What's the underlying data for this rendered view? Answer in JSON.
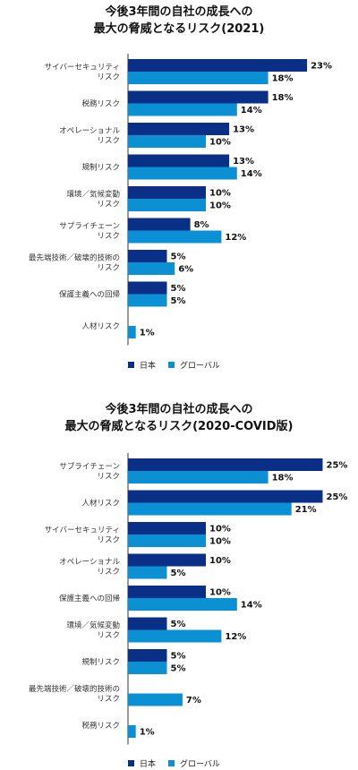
{
  "chart_data": [
    {
      "type": "bar",
      "orientation": "horizontal",
      "title_lines": [
        "今後3年間の自社の成長への",
        "最大の脅威となるリスク(2021)"
      ],
      "categories": [
        [
          "サイバーセキュリティ",
          "リスク"
        ],
        [
          "税務リスク"
        ],
        [
          "オペレーショナル",
          "リスク"
        ],
        [
          "規制リスク"
        ],
        [
          "環境／気候変動",
          "リスク"
        ],
        [
          "サプライチェーン",
          "リスク"
        ],
        [
          "最先端技術／破壊的技術の",
          "リスク"
        ],
        [
          "保護主義への回帰"
        ],
        [
          "人材リスク"
        ]
      ],
      "series": [
        {
          "name": "日本",
          "color": "#0a2f86",
          "values": [
            23,
            18,
            13,
            13,
            10,
            8,
            5,
            5,
            null
          ],
          "labels": [
            "23%",
            "18%",
            "13%",
            "13%",
            "10%",
            "8%",
            "5%",
            "5%",
            ""
          ]
        },
        {
          "name": "グローバル",
          "color": "#0b90d3",
          "values": [
            18,
            14,
            10,
            14,
            10,
            12,
            6,
            5,
            1
          ],
          "labels": [
            "18%",
            "14%",
            "10%",
            "14%",
            "10%",
            "12%",
            "6%",
            "5%",
            "1%"
          ]
        }
      ],
      "legend": "bottom-left",
      "grid": false
    },
    {
      "type": "bar",
      "orientation": "horizontal",
      "title_lines": [
        "今後3年間の自社の成長への",
        "最大の脅威となるリスク(2020-COVID版)"
      ],
      "categories": [
        [
          "サプライチェーン",
          "リスク"
        ],
        [
          "人材リスク"
        ],
        [
          "サイバーセキュリティ",
          "リスク"
        ],
        [
          "オペレーショナル",
          "リスク"
        ],
        [
          "保護主義への回帰"
        ],
        [
          "環境／気候変動",
          "リスク"
        ],
        [
          "規制リスク"
        ],
        [
          "最先端技術／破壊的技術の",
          "リスク"
        ],
        [
          "税務リスク"
        ]
      ],
      "series": [
        {
          "name": "日本",
          "color": "#0a2f86",
          "values": [
            25,
            25,
            10,
            10,
            10,
            5,
            5,
            null,
            null
          ],
          "labels": [
            "25%",
            "25%",
            "10%",
            "10%",
            "10%",
            "5%",
            "5%",
            "",
            ""
          ]
        },
        {
          "name": "グローバル",
          "color": "#0b90d3",
          "values": [
            18,
            21,
            10,
            5,
            14,
            12,
            5,
            7,
            1
          ],
          "labels": [
            "18%",
            "21%",
            "10%",
            "5%",
            "14%",
            "12%",
            "5%",
            "7%",
            "1%"
          ]
        }
      ],
      "legend": "bottom-left",
      "grid": false
    }
  ]
}
